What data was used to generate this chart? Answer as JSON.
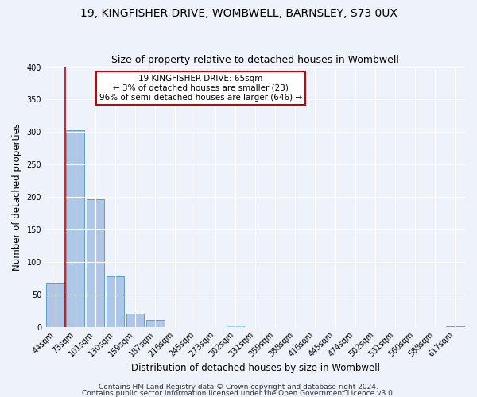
{
  "title": "19, KINGFISHER DRIVE, WOMBWELL, BARNSLEY, S73 0UX",
  "subtitle": "Size of property relative to detached houses in Wombwell",
  "xlabel": "Distribution of detached houses by size in Wombwell",
  "ylabel": "Number of detached properties",
  "bin_labels": [
    "44sqm",
    "73sqm",
    "101sqm",
    "130sqm",
    "159sqm",
    "187sqm",
    "216sqm",
    "245sqm",
    "273sqm",
    "302sqm",
    "331sqm",
    "359sqm",
    "388sqm",
    "416sqm",
    "445sqm",
    "474sqm",
    "502sqm",
    "531sqm",
    "560sqm",
    "588sqm",
    "617sqm"
  ],
  "bar_values": [
    67,
    303,
    196,
    78,
    20,
    10,
    0,
    0,
    0,
    2,
    0,
    0,
    0,
    0,
    0,
    0,
    0,
    0,
    0,
    0,
    1
  ],
  "bar_color": "#aec6e8",
  "bar_edge_color": "#5a9fd4",
  "marker_color": "#cc0000",
  "annotation_title": "19 KINGFISHER DRIVE: 65sqm",
  "annotation_line1": "← 3% of detached houses are smaller (23)",
  "annotation_line2": "96% of semi-detached houses are larger (646) →",
  "annotation_box_color": "#ffffff",
  "annotation_box_edge_color": "#cc0000",
  "ylim": [
    0,
    400
  ],
  "yticks": [
    0,
    50,
    100,
    150,
    200,
    250,
    300,
    350,
    400
  ],
  "footer1": "Contains HM Land Registry data © Crown copyright and database right 2024.",
  "footer2": "Contains public sector information licensed under the Open Government Licence v3.0.",
  "bg_color": "#eef2fb",
  "grid_color": "#ffffff",
  "title_fontsize": 10,
  "subtitle_fontsize": 9,
  "axis_label_fontsize": 8.5,
  "tick_fontsize": 7,
  "footer_fontsize": 6.5,
  "annotation_fontsize": 7.5
}
